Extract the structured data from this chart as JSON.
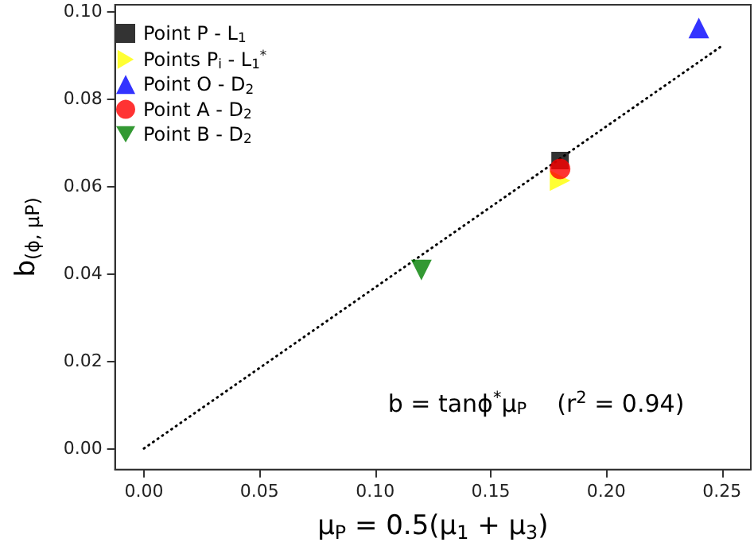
{
  "chart_data": {
    "type": "scatter",
    "xlabel": "μ$_{P}$ = 0.5(μ$_{1}$ + μ$_{3}$)",
    "ylabel": "b$_{(ϕ, μP)}$",
    "xlim": [
      -0.0125,
      0.2625
    ],
    "ylim": [
      -0.0048,
      0.1014
    ],
    "xticks": [
      {
        "value": 0,
        "label": "0.00"
      },
      {
        "value": 0.05,
        "label": "0.05"
      },
      {
        "value": 0.1,
        "label": "0.10"
      },
      {
        "value": 0.15,
        "label": "0.15"
      },
      {
        "value": 0.2,
        "label": "0.20"
      },
      {
        "value": 0.25,
        "label": "0.25"
      }
    ],
    "yticks": [
      {
        "value": 0,
        "label": "0.00"
      },
      {
        "value": 0.02,
        "label": "0.02"
      },
      {
        "value": 0.04,
        "label": "0.04"
      },
      {
        "value": 0.06,
        "label": "0.06"
      },
      {
        "value": 0.08,
        "label": "0.08"
      },
      {
        "value": 0.1,
        "label": "0.10"
      }
    ],
    "grid": false,
    "legend": "top left",
    "annotations": [
      "b = tanϕ$^{*}$μ$_{P}$    (r$^{2}$ = 0.94)"
    ],
    "series": [
      {
        "type": "line",
        "x": [
          0,
          0.25
        ],
        "values": [
          0,
          0.092
        ],
        "color": "#000000",
        "line_style": "dotted",
        "marker": "none"
      },
      {
        "name": "Point P - L$_{1}$",
        "x": [
          0.18
        ],
        "values": [
          0.0658
        ],
        "color": "#000000",
        "marker": "square"
      },
      {
        "name": "Points P$_{i}$ - L$_{1}$$^{*}$",
        "x": [
          0.18
        ],
        "values": [
          0.0612
        ],
        "color": "#ffff00",
        "marker": "triangle-right"
      },
      {
        "name": "Point O - D$_{2}$",
        "x": [
          0.24
        ],
        "values": [
          0.0961
        ],
        "color": "#0000ff",
        "marker": "triangle"
      },
      {
        "name": "Point A - D$_{2}$",
        "x": [
          0.18
        ],
        "values": [
          0.0639
        ],
        "color": "#ff0000",
        "marker": "circle"
      },
      {
        "name": "Point B - D$_{2}$",
        "x": [
          0.12
        ],
        "values": [
          0.0408
        ],
        "color": "#008000",
        "marker": "triangle-down"
      }
    ]
  }
}
